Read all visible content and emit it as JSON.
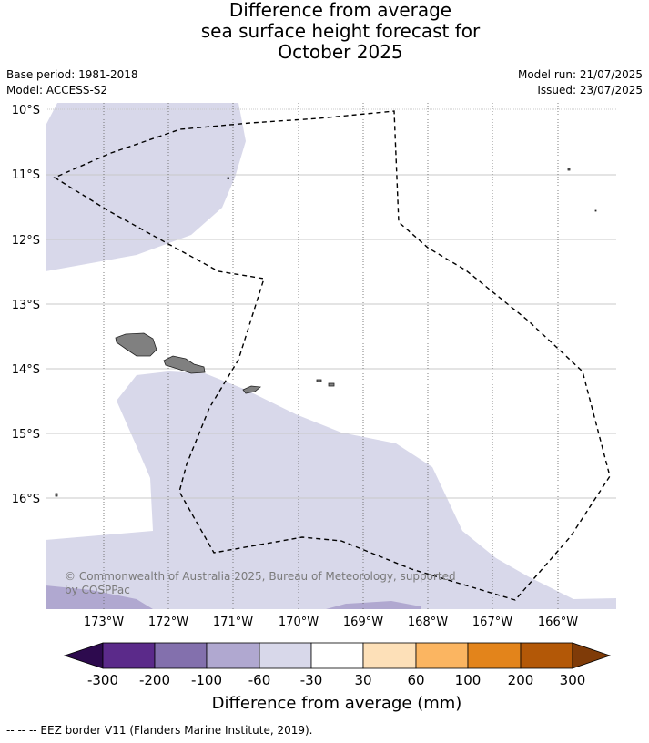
{
  "title": {
    "line1": "Difference from average",
    "line2": "sea surface height forecast for",
    "line3": "October 2025"
  },
  "meta": {
    "base_period": "Base period: 1981-2018",
    "model": "Model: ACCESS-S2",
    "model_run": "Model run: 21/07/2025",
    "issued": "Issued: 23/07/2025"
  },
  "axes": {
    "lat_labels": [
      "10°S",
      "11°S",
      "12°S",
      "13°S",
      "14°S",
      "15°S",
      "16°S"
    ],
    "lon_labels": [
      "173°W",
      "172°W",
      "171°W",
      "170°W",
      "169°W",
      "168°W",
      "167°W",
      "166°W"
    ]
  },
  "copyright": "© Commonwealth of Australia 2025, Bureau of Meteorology, supported by COSPPac",
  "colorbar": {
    "title": "Difference from average (mm)",
    "tick_labels": [
      "-300",
      "-200",
      "-100",
      "-60",
      "-30",
      "30",
      "60",
      "100",
      "200",
      "300"
    ],
    "colors": [
      "#2d0a4e",
      "#5b2a8a",
      "#8370ad",
      "#b0a8d0",
      "#d8d8ea",
      "#ffffff",
      "#fde0b8",
      "#fbb561",
      "#e3841b",
      "#b35807",
      "#7f3b08"
    ]
  },
  "legend_note": "--  --  -- EEZ border V11 (Flanders Marine Institute, 2019).",
  "colors": {
    "land": "#808080",
    "band_m30": "#d8d8ea",
    "band_m60": "#b0a8d0",
    "eez": "#000000"
  }
}
